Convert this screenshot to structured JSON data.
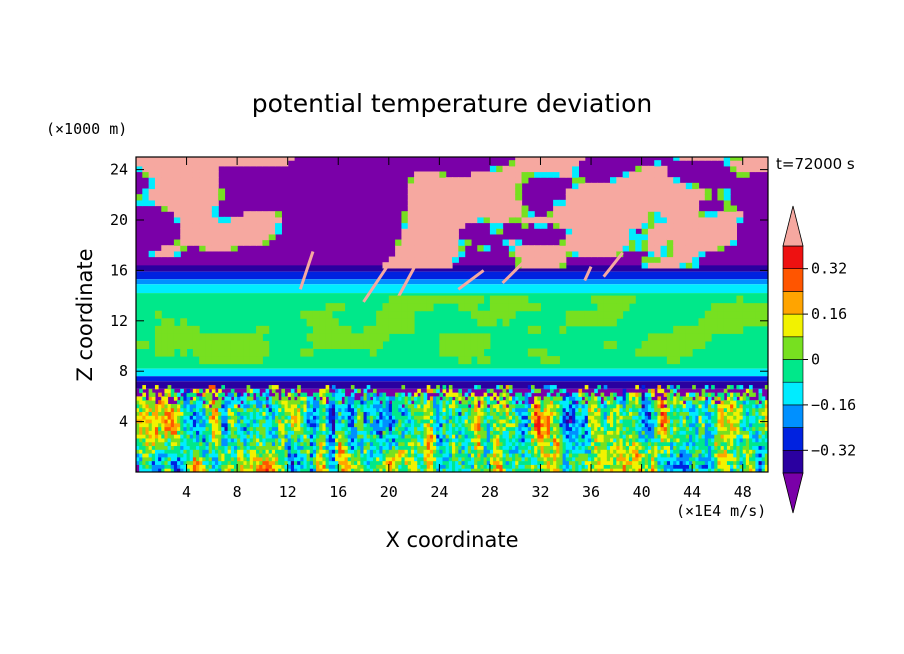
{
  "chart_data": {
    "type": "heatmap",
    "title": "potential temperature deviation",
    "xlabel": "X coordinate",
    "ylabel": "Z coordinate",
    "x_unit": "(×1E4 m/s)",
    "y_unit": "(×1000 m)",
    "time_label": "t=72000 s",
    "xlim": [
      0,
      50
    ],
    "ylim": [
      0,
      25
    ],
    "x_ticks": [
      "4",
      "8",
      "12",
      "16",
      "20",
      "24",
      "28",
      "32",
      "36",
      "40",
      "44",
      "48"
    ],
    "y_ticks": [
      "4",
      "8",
      "12",
      "16",
      "20",
      "24"
    ],
    "colorbar": {
      "levels": [
        -0.4,
        -0.32,
        -0.24,
        -0.16,
        -0.08,
        0,
        0.08,
        0.16,
        0.24,
        0.32,
        0.4
      ],
      "tick_labels": [
        "0.32",
        "0.16",
        "0",
        "−0.16",
        "−0.32"
      ],
      "colors": [
        "#7a00a8",
        "#2a00a0",
        "#0022e0",
        "#0090ff",
        "#00ecff",
        "#00e88a",
        "#77e020",
        "#f2f200",
        "#ffa400",
        "#ff5500",
        "#ee1111",
        "#f6a8a0"
      ],
      "extend": "both"
    },
    "bands": [
      {
        "z_range": [
          16,
          25
        ],
        "description": "mixed purple / pink patches"
      },
      {
        "z_range": [
          15.2,
          16.3
        ],
        "value": -0.32
      },
      {
        "z_range": [
          7.5,
          15.2
        ],
        "value": 0.0
      },
      {
        "z_range": [
          6.8,
          7.5
        ],
        "value": -0.32
      },
      {
        "z_range": [
          0,
          7
        ],
        "description": "turbulent multicolor layer"
      }
    ]
  }
}
